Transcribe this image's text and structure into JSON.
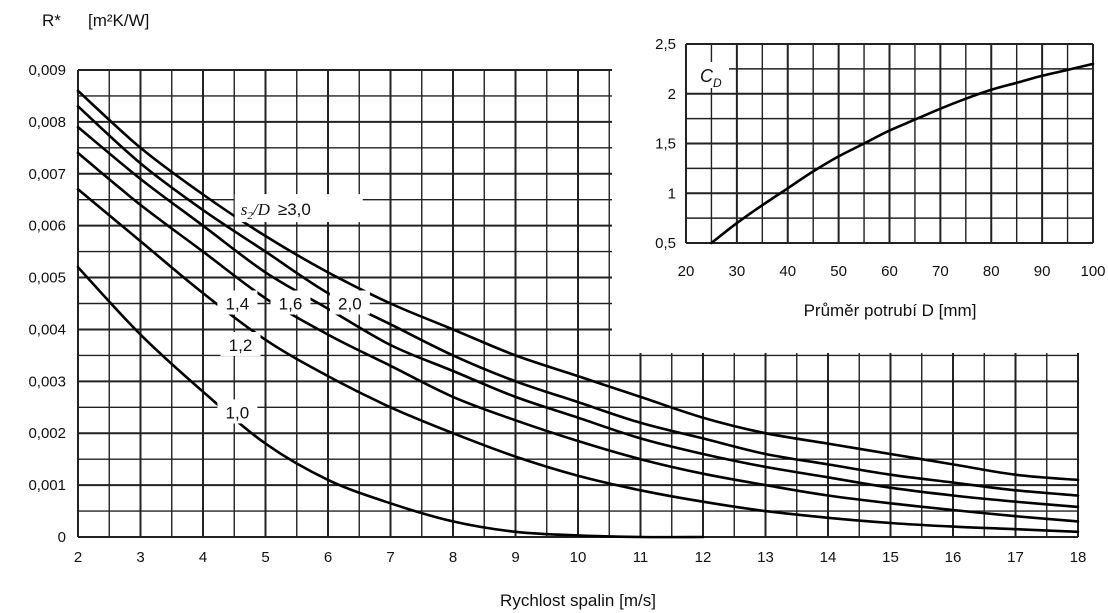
{
  "chart_data": [
    {
      "type": "line",
      "ylabel": "R*",
      "yunit": "[m²K/W]",
      "xlabel": "Rychlost spalin [m/s]",
      "xlim": [
        2,
        18
      ],
      "ylim": [
        0,
        0.009
      ],
      "x_ticks": [
        "2",
        "3",
        "4",
        "5",
        "6",
        "7",
        "8",
        "9",
        "10",
        "11",
        "12",
        "13",
        "14",
        "15",
        "16",
        "17",
        "18"
      ],
      "y_ticks": [
        "0",
        "0,001",
        "0,002",
        "0,003",
        "0,004",
        "0,005",
        "0,006",
        "0,007",
        "0,008",
        "0,009"
      ],
      "grid": true,
      "series": [
        {
          "name": "1,0",
          "x": [
            2,
            3,
            4,
            5,
            6,
            7,
            8,
            9,
            10,
            11,
            12
          ],
          "y": [
            0.0052,
            0.0039,
            0.0028,
            0.0018,
            0.0011,
            0.00065,
            0.0003,
            0.0001,
            3e-05,
            0.0,
            0.0
          ]
        },
        {
          "name": "1,2",
          "x": [
            2,
            3,
            4,
            5,
            6,
            7,
            8,
            9,
            10,
            11,
            12,
            13,
            14,
            15,
            16,
            17,
            18
          ],
          "y": [
            0.0067,
            0.0057,
            0.0047,
            0.0038,
            0.0031,
            0.0025,
            0.002,
            0.00155,
            0.00118,
            0.0009,
            0.00068,
            0.0005,
            0.00037,
            0.00027,
            0.0002,
            0.00015,
            0.0001
          ]
        },
        {
          "name": "1,4",
          "x": [
            2,
            3,
            4,
            5,
            6,
            7,
            8,
            9,
            10,
            11,
            12,
            13,
            14,
            15,
            16,
            17,
            18
          ],
          "y": [
            0.0074,
            0.0064,
            0.0055,
            0.0046,
            0.0039,
            0.0033,
            0.0027,
            0.00225,
            0.00185,
            0.0015,
            0.00122,
            0.001,
            0.0008,
            0.00065,
            0.00052,
            0.0004,
            0.0003
          ]
        },
        {
          "name": "1,6",
          "x": [
            2,
            3,
            4,
            5,
            6,
            7,
            8,
            9,
            10,
            11,
            12,
            13,
            14,
            15,
            16,
            17,
            18
          ],
          "y": [
            0.0079,
            0.0069,
            0.006,
            0.0051,
            0.0044,
            0.0037,
            0.0032,
            0.0027,
            0.0023,
            0.0019,
            0.0016,
            0.00135,
            0.00115,
            0.00095,
            0.0008,
            0.00068,
            0.00058
          ]
        },
        {
          "name": "2,0",
          "x": [
            2,
            3,
            4,
            5,
            6,
            7,
            8,
            9,
            10,
            11,
            12,
            13,
            14,
            15,
            16,
            17,
            18
          ],
          "y": [
            0.0083,
            0.0072,
            0.0063,
            0.0055,
            0.0047,
            0.0041,
            0.0035,
            0.003,
            0.0026,
            0.0022,
            0.0019,
            0.0016,
            0.0014,
            0.0012,
            0.00105,
            0.0009,
            0.0008
          ]
        },
        {
          "name": "s₂/D ≥3,0",
          "x": [
            2,
            3,
            4,
            5,
            6,
            7,
            8,
            9,
            10,
            11,
            12,
            13,
            14,
            15,
            16,
            17,
            18
          ],
          "y": [
            0.0086,
            0.0075,
            0.0066,
            0.0058,
            0.0051,
            0.0045,
            0.004,
            0.0035,
            0.0031,
            0.0027,
            0.0023,
            0.002,
            0.0018,
            0.0016,
            0.0014,
            0.0012,
            0.0011
          ]
        }
      ],
      "curve_labels": {
        "s_label": "s",
        "s_sub": "2",
        "d_label": "/D",
        "ge": "≥3,0"
      }
    },
    {
      "type": "line",
      "ylabel": "C_D",
      "ylabel_main": "C",
      "ylabel_sub": "D",
      "xlabel": "Průměr potrubí D [mm]",
      "xlim": [
        20,
        100
      ],
      "ylim": [
        0.5,
        2.5
      ],
      "x_ticks": [
        "20",
        "30",
        "40",
        "50",
        "60",
        "70",
        "80",
        "90",
        "100"
      ],
      "y_ticks": [
        "0,5",
        "1",
        "1,5",
        "2",
        "2,5"
      ],
      "grid": true,
      "series": [
        {
          "x": [
            25,
            30,
            35,
            40,
            45,
            50,
            55,
            60,
            65,
            70,
            75,
            80,
            85,
            90,
            95,
            100
          ],
          "y": [
            0.5,
            0.7,
            0.88,
            1.05,
            1.22,
            1.37,
            1.5,
            1.63,
            1.74,
            1.85,
            1.95,
            2.04,
            2.11,
            2.18,
            2.24,
            2.3
          ]
        }
      ]
    }
  ]
}
